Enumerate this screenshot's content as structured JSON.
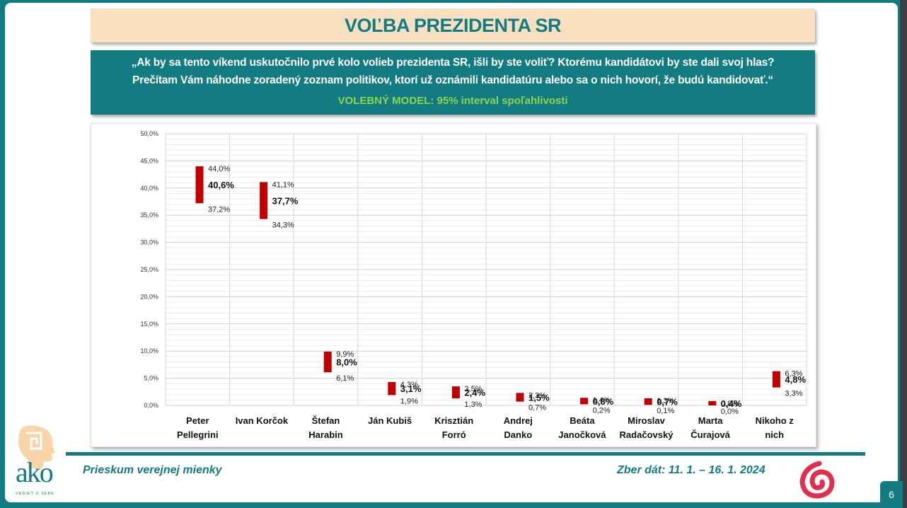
{
  "header": {
    "title": "VOĽBA PREZIDENTA SR",
    "question_line1": "„Ak by sa tento víkend uskutočnilo prvé kolo volieb prezidenta SR, išli by ste voliť? Ktorému kandidátovi by ste dali svoj hlas?",
    "question_line2": "Prečítam Vám náhodne zoradený zoznam politikov, ktorí už oznámili kandidatúru alebo sa o nich hovorí, že budú kandidovať.“",
    "model_label": "VOLEBNÝ MODEL:  95% interval spoľahlivosti"
  },
  "footer": {
    "survey_label": "Prieskum verejnej mienky",
    "collection_dates": "Zber dát: 11. 1. – 16. 1. 2024",
    "page_number": "6",
    "logo_text": "ako",
    "logo_tagline": "VEDIEŤ O SEBE"
  },
  "colors": {
    "accent": "#127c82",
    "bar": "#c00000",
    "title_bg": "#f7dfc0",
    "model_text": "#8fd44a"
  },
  "chart_data": {
    "type": "bar",
    "subtype": "floating-range (95% confidence interval)",
    "title": "VOĽBA PREZIDENTA SR",
    "xlabel": "",
    "ylabel": "",
    "ylim": [
      0,
      50
    ],
    "yticks": [
      "0,0%",
      "5,0%",
      "10,0%",
      "15,0%",
      "20,0%",
      "25,0%",
      "30,0%",
      "35,0%",
      "40,0%",
      "45,0%",
      "50,0%"
    ],
    "grid": true,
    "legend": "none",
    "categories": [
      "Peter Pellegrini",
      "Ivan Korčok",
      "Štefan Harabin",
      "Ján Kubiš",
      "Krisztián Forró",
      "Andrej Danko",
      "Beáta Janočková",
      "Miroslav Radačovský",
      "Marta Čurajová",
      "Nikoho z nich"
    ],
    "category_lines": [
      [
        "Peter",
        "Pellegrini"
      ],
      [
        "Ivan Korčok",
        ""
      ],
      [
        "Štefan",
        "Harabin"
      ],
      [
        "Ján Kubiš",
        ""
      ],
      [
        "Krisztián",
        "Forró"
      ],
      [
        "Andrej",
        "Danko"
      ],
      [
        "Beáta",
        "Janočková"
      ],
      [
        "Miroslav",
        "Radačovský"
      ],
      [
        "Marta",
        "Čurajová"
      ],
      [
        "Nikoho z",
        "nich"
      ]
    ],
    "series": [
      {
        "name": "upper",
        "values": [
          44.0,
          41.1,
          9.9,
          4.3,
          3.5,
          2.3,
          1.4,
          1.3,
          0.8,
          6.3
        ]
      },
      {
        "name": "estimate",
        "values": [
          40.6,
          37.7,
          8.0,
          3.1,
          2.4,
          1.5,
          0.8,
          0.7,
          0.4,
          4.8
        ]
      },
      {
        "name": "lower",
        "values": [
          37.2,
          34.3,
          6.1,
          1.9,
          1.3,
          0.7,
          0.2,
          0.1,
          0.0,
          3.3
        ]
      }
    ],
    "labels": {
      "upper": [
        "44,0%",
        "41,1%",
        "9,9%",
        "4,3%",
        "3,5%",
        "2,3%",
        "1,4%",
        "1,3%",
        "0,8%",
        "6,3%"
      ],
      "estimate": [
        "40,6%",
        "37,7%",
        "8,0%",
        "3,1%",
        "2,4%",
        "1,5%",
        "0,8%",
        "0,7%",
        "0,4%",
        "4,8%"
      ],
      "lower": [
        "37,2%",
        "34,3%",
        "6,1%",
        "1,9%",
        "1,3%",
        "0,7%",
        "0,2%",
        "0,1%",
        "0,0%",
        "3,3%"
      ]
    }
  }
}
